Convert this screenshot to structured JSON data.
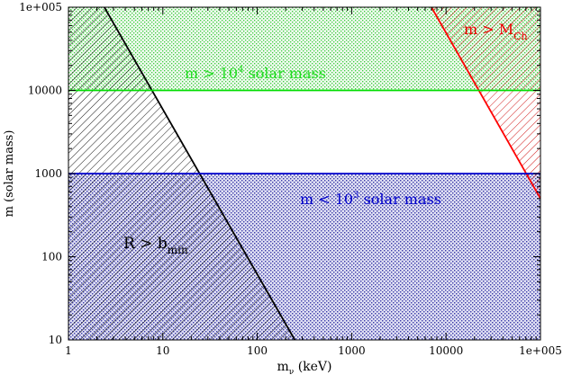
{
  "chart_data": {
    "type": "area",
    "title": "",
    "x_scale": "log",
    "y_scale": "log",
    "xlim": [
      1,
      100000
    ],
    "ylim": [
      10,
      100000
    ],
    "xlabel": {
      "base": "m",
      "sub": "ν",
      "rest": " (keV)"
    },
    "ylabel": "m (solar mass)",
    "x_ticks": [
      {
        "value": 1,
        "label": "1"
      },
      {
        "value": 10,
        "label": "10"
      },
      {
        "value": 100,
        "label": "100"
      },
      {
        "value": 1000,
        "label": "1000"
      },
      {
        "value": 10000,
        "label": "10000"
      },
      {
        "value": 100000,
        "label": "1e+005"
      }
    ],
    "y_ticks": [
      {
        "value": 10,
        "label": "10"
      },
      {
        "value": 100,
        "label": "100"
      },
      {
        "value": 1000,
        "label": "1000"
      },
      {
        "value": 10000,
        "label": "10000"
      },
      {
        "value": 100000,
        "label": "1e+005"
      }
    ],
    "grid": false,
    "series": [
      {
        "name": "R > b_min",
        "color": "#000000",
        "boundary": [
          [
            2.4,
            100000
          ],
          [
            250,
            10
          ]
        ],
        "fill_side": "left",
        "pattern": "diagonal-hatch"
      },
      {
        "name": "m > M_Ch",
        "color": "#ff0000",
        "boundary": [
          [
            7000,
            100000
          ],
          [
            100000,
            500
          ]
        ],
        "fill_side": "right",
        "pattern": "diagonal-hatch"
      },
      {
        "name": "m > 10^4 solar mass",
        "color": "#00dd00",
        "y_threshold": 10000,
        "fill_side": "above",
        "pattern": "dots"
      },
      {
        "name": "m < 10^3 solar mass",
        "color": "#0000cc",
        "y_threshold": 1000,
        "fill_side": "below",
        "pattern": "dots"
      }
    ],
    "annotations": {
      "green": {
        "base": "m > 10",
        "sup": "4",
        "rest": " solar mass"
      },
      "blue": {
        "base": "m < 10",
        "sup": "3",
        "rest": " solar mass"
      },
      "black": {
        "base": "R > b",
        "sub": "min"
      },
      "red": {
        "base": "m > M",
        "sub": "Ch"
      }
    }
  }
}
